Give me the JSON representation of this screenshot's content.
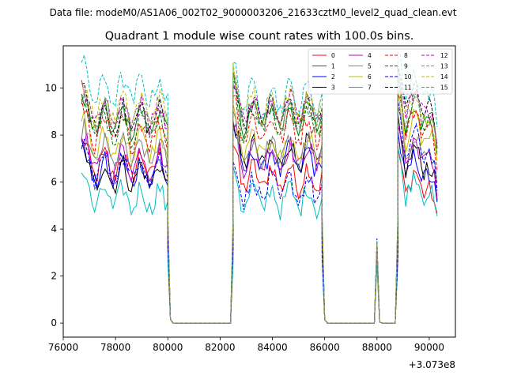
{
  "chart_data": {
    "type": "line",
    "suptitle": "Data file: modeM0/AS1A06_002T02_9000003206_21633cztM0_level2_quad_clean.evt",
    "title": "Quadrant 1 module wise count rates with 100.0s bins.",
    "xlabel": "",
    "ylabel": "",
    "x_offset_label": "+3.073e8",
    "xlim": [
      76000,
      91000
    ],
    "ylim": [
      -0.6,
      11.8
    ],
    "x_ticks": [
      76000,
      78000,
      80000,
      82000,
      84000,
      86000,
      88000,
      90000
    ],
    "y_ticks": [
      0,
      2,
      4,
      6,
      8,
      10
    ],
    "x_tick_labels": [
      "76000",
      "78000",
      "80000",
      "82000",
      "84000",
      "86000",
      "88000",
      "90000"
    ],
    "y_tick_labels": [
      "0",
      "2",
      "4",
      "6",
      "8",
      "10"
    ],
    "segments": [
      {
        "start": 76700,
        "end": 80000,
        "step": 100
      },
      {
        "start": 82500,
        "end": 85900,
        "step": 100
      },
      {
        "start": 88800,
        "end": 90300,
        "step": 100
      }
    ],
    "gaps": [
      {
        "x": [
          80000,
          80100,
          80200,
          80300,
          82400,
          82500
        ],
        "y": [
          1.0,
          0.15,
          0.0,
          0.0,
          0.0,
          1.0
        ]
      },
      {
        "x": [
          85900,
          86000,
          86100,
          86200,
          87900,
          88000,
          88100,
          88200,
          88700,
          88800
        ],
        "y": [
          1.0,
          0.15,
          0.0,
          0.0,
          0.0,
          0.3,
          0.05,
          0.0,
          0.0,
          1.0
        ]
      }
    ],
    "spike_x": 88000,
    "grid": false,
    "legend_position": "top-right",
    "legend_columns": 4,
    "series": [
      {
        "name": "0",
        "color": "#ff0000",
        "style": "solid",
        "level": [
          6.7,
          6.2,
          6.0
        ],
        "spike": 3.0
      },
      {
        "name": "1",
        "color": "#008000",
        "style": "solid",
        "level": [
          8.6,
          8.8,
          8.9
        ],
        "spike": 3.2
      },
      {
        "name": "2",
        "color": "#0000ff",
        "style": "solid",
        "level": [
          6.4,
          6.9,
          6.6
        ],
        "spike": 2.9
      },
      {
        "name": "3",
        "color": "#000000",
        "style": "solid",
        "level": [
          6.3,
          7.2,
          7.0
        ],
        "spike": 2.8
      },
      {
        "name": "4",
        "color": "#bf00bf",
        "style": "solid",
        "level": [
          6.9,
          7.1,
          7.3
        ],
        "spike": 2.9
      },
      {
        "name": "5",
        "color": "#00bfbf",
        "style": "solid",
        "level": [
          5.3,
          5.3,
          5.9
        ],
        "spike": 2.5
      },
      {
        "name": "6",
        "color": "#bfbf00",
        "style": "solid",
        "level": [
          7.6,
          7.5,
          8.2
        ],
        "spike": 3.1
      },
      {
        "name": "7",
        "color": "#808080",
        "style": "solid",
        "level": [
          7.2,
          7.3,
          7.6
        ],
        "spike": 3.0
      },
      {
        "name": "8",
        "color": "#ff0000",
        "style": "dashed",
        "level": [
          8.1,
          8.3,
          8.6
        ],
        "spike": 3.2
      },
      {
        "name": "9",
        "color": "#008000",
        "style": "dashed",
        "level": [
          8.4,
          8.6,
          9.0
        ],
        "spike": 3.3
      },
      {
        "name": "10",
        "color": "#0000ff",
        "style": "dashed",
        "level": [
          6.6,
          5.7,
          7.6
        ],
        "spike": 3.6
      },
      {
        "name": "11",
        "color": "#000000",
        "style": "dashed",
        "level": [
          8.7,
          9.0,
          9.6
        ],
        "spike": 3.4
      },
      {
        "name": "12",
        "color": "#bf00bf",
        "style": "dashed",
        "level": [
          8.9,
          9.1,
          9.4
        ],
        "spike": 3.3
      },
      {
        "name": "13",
        "color": "#00bfbf",
        "style": "dashed",
        "level": [
          9.9,
          9.6,
          10.2
        ],
        "spike": 3.5
      },
      {
        "name": "14",
        "color": "#bfbf00",
        "style": "dashed",
        "level": [
          9.1,
          9.3,
          9.2
        ],
        "spike": 3.4
      },
      {
        "name": "15",
        "color": "#808080",
        "style": "dashed",
        "level": [
          8.8,
          8.9,
          9.1
        ],
        "spike": 3.3
      }
    ]
  }
}
